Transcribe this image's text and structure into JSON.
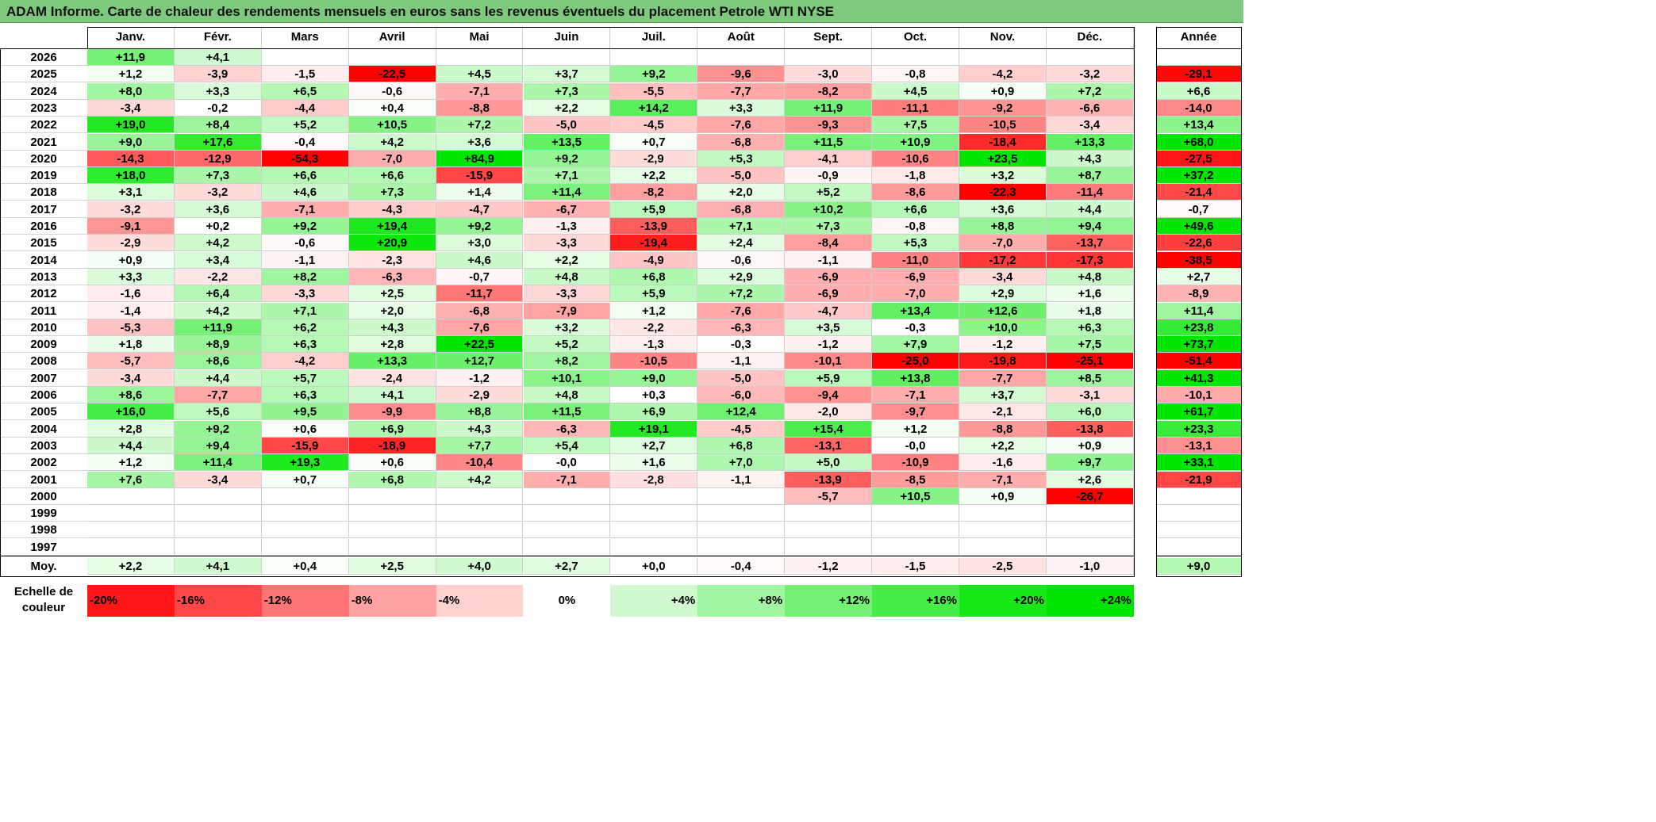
{
  "title": "ADAM Informe. Carte de chaleur des rendements mensuels en euros sans les revenus éventuels du placement Petrole WTI NYSE",
  "months": [
    "Janv.",
    "Févr.",
    "Mars",
    "Avril",
    "Mai",
    "Juin",
    "Juil.",
    "Août",
    "Sept.",
    "Oct.",
    "Nov.",
    "Déc."
  ],
  "annual_header": "Année",
  "avg_label": "Moy.",
  "scale_label_line1": "Echelle de",
  "scale_label_line2": "couleur",
  "colors": {
    "negative": "#ff0000",
    "positive": "#00e600",
    "neutral": "#ffffff",
    "title_bg": "#7fc97f"
  },
  "chart_data": {
    "type": "heatmap",
    "title": "ADAM Informe. Carte de chaleur des rendements mensuels en euros sans les revenus éventuels du placement Petrole WTI NYSE",
    "columns": [
      "Janv.",
      "Févr.",
      "Mars",
      "Avril",
      "Mai",
      "Juin",
      "Juil.",
      "Août",
      "Sept.",
      "Oct.",
      "Nov.",
      "Déc.",
      "Année"
    ],
    "rows": [
      {
        "year": "2026",
        "months": [
          "+11,9",
          "+4,1",
          "",
          "",
          "",
          "",
          "",
          "",
          "",
          "",
          "",
          ""
        ],
        "annual": ""
      },
      {
        "year": "2025",
        "months": [
          "+1,2",
          "-3,9",
          "-1,5",
          "-22,5",
          "+4,5",
          "+3,7",
          "+9,2",
          "-9,6",
          "-3,0",
          "-0,8",
          "-4,2",
          "-3,2"
        ],
        "annual": "-29,1"
      },
      {
        "year": "2024",
        "months": [
          "+8,0",
          "+3,3",
          "+6,5",
          "-0,6",
          "-7,1",
          "+7,3",
          "-5,5",
          "-7,7",
          "-8,2",
          "+4,5",
          "+0,9",
          "+7,2"
        ],
        "annual": "+6,6"
      },
      {
        "year": "2023",
        "months": [
          "-3,4",
          "-0,2",
          "-4,4",
          "+0,4",
          "-8,8",
          "+2,2",
          "+14,2",
          "+3,3",
          "+11,9",
          "-11,1",
          "-9,2",
          "-6,6"
        ],
        "annual": "-14,0"
      },
      {
        "year": "2022",
        "months": [
          "+19,0",
          "+8,4",
          "+5,2",
          "+10,5",
          "+7,2",
          "-5,0",
          "-4,5",
          "-7,6",
          "-9,3",
          "+7,5",
          "-10,5",
          "-3,4"
        ],
        "annual": "+13,4"
      },
      {
        "year": "2021",
        "months": [
          "+9,0",
          "+17,6",
          "-0,4",
          "+4,2",
          "+3,6",
          "+13,5",
          "+0,7",
          "-6,8",
          "+11,5",
          "+10,9",
          "-18,4",
          "+13,3"
        ],
        "annual": "+68,0"
      },
      {
        "year": "2020",
        "months": [
          "-14,3",
          "-12,9",
          "-54,3",
          "-7,0",
          "+84,9",
          "+9,2",
          "-2,9",
          "+5,3",
          "-4,1",
          "-10,6",
          "+23,5",
          "+4,3"
        ],
        "annual": "-27,5"
      },
      {
        "year": "2019",
        "months": [
          "+18,0",
          "+7,3",
          "+6,6",
          "+6,6",
          "-15,9",
          "+7,1",
          "+2,2",
          "-5,0",
          "-0,9",
          "-1,8",
          "+3,2",
          "+8,7"
        ],
        "annual": "+37,2"
      },
      {
        "year": "2018",
        "months": [
          "+3,1",
          "-3,2",
          "+4,6",
          "+7,3",
          "+1,4",
          "+11,4",
          "-8,2",
          "+2,0",
          "+5,2",
          "-8,6",
          "-22,3",
          "-11,4"
        ],
        "annual": "-21,4"
      },
      {
        "year": "2017",
        "months": [
          "-3,2",
          "+3,6",
          "-7,1",
          "-4,3",
          "-4,7",
          "-6,7",
          "+5,9",
          "-6,8",
          "+10,2",
          "+6,6",
          "+3,6",
          "+4,4"
        ],
        "annual": "-0,7"
      },
      {
        "year": "2016",
        "months": [
          "-9,1",
          "+0,2",
          "+9,2",
          "+19,4",
          "+9,2",
          "-1,3",
          "-13,9",
          "+7,1",
          "+7,3",
          "-0,8",
          "+8,8",
          "+9,4"
        ],
        "annual": "+49,6"
      },
      {
        "year": "2015",
        "months": [
          "-2,9",
          "+4,2",
          "-0,6",
          "+20,9",
          "+3,0",
          "-3,3",
          "-19,4",
          "+2,4",
          "-8,4",
          "+5,3",
          "-7,0",
          "-13,7"
        ],
        "annual": "-22,6"
      },
      {
        "year": "2014",
        "months": [
          "+0,9",
          "+3,4",
          "-1,1",
          "-2,3",
          "+4,6",
          "+2,2",
          "-4,9",
          "-0,6",
          "-1,1",
          "-11,0",
          "-17,2",
          "-17,3"
        ],
        "annual": "-38,5"
      },
      {
        "year": "2013",
        "months": [
          "+3,3",
          "-2,2",
          "+8,2",
          "-6,3",
          "-0,7",
          "+4,8",
          "+6,8",
          "+2,9",
          "-6,9",
          "-6,9",
          "-3,4",
          "+4,8"
        ],
        "annual": "+2,7"
      },
      {
        "year": "2012",
        "months": [
          "-1,6",
          "+6,4",
          "-3,3",
          "+2,5",
          "-11,7",
          "-3,3",
          "+5,9",
          "+7,2",
          "-6,9",
          "-7,0",
          "+2,9",
          "+1,6"
        ],
        "annual": "-8,9"
      },
      {
        "year": "2011",
        "months": [
          "-1,4",
          "+4,2",
          "+7,1",
          "+2,0",
          "-6,8",
          "-7,9",
          "+1,2",
          "-7,6",
          "-4,7",
          "+13,4",
          "+12,6",
          "+1,8"
        ],
        "annual": "+11,4"
      },
      {
        "year": "2010",
        "months": [
          "-5,3",
          "+11,9",
          "+6,2",
          "+4,3",
          "-7,6",
          "+3,2",
          "-2,2",
          "-6,3",
          "+3,5",
          "-0,3",
          "+10,0",
          "+6,3"
        ],
        "annual": "+23,8"
      },
      {
        "year": "2009",
        "months": [
          "+1,8",
          "+8,9",
          "+6,3",
          "+2,8",
          "+22,5",
          "+5,2",
          "-1,3",
          "-0,3",
          "-1,2",
          "+7,9",
          "-1,2",
          "+7,5"
        ],
        "annual": "+73,7"
      },
      {
        "year": "2008",
        "months": [
          "-5,7",
          "+8,6",
          "-4,2",
          "+13,3",
          "+12,7",
          "+8,2",
          "-10,5",
          "-1,1",
          "-10,1",
          "-25,0",
          "-19,8",
          "-25,1"
        ],
        "annual": "-51,4"
      },
      {
        "year": "2007",
        "months": [
          "-3,4",
          "+4,4",
          "+5,7",
          "-2,4",
          "-1,2",
          "+10,1",
          "+9,0",
          "-5,0",
          "+5,9",
          "+13,8",
          "-7,7",
          "+8,5"
        ],
        "annual": "+41,3"
      },
      {
        "year": "2006",
        "months": [
          "+8,6",
          "-7,7",
          "+6,3",
          "+4,1",
          "-2,9",
          "+4,8",
          "+0,3",
          "-6,0",
          "-9,4",
          "-7,1",
          "+3,7",
          "-3,1"
        ],
        "annual": "-10,1"
      },
      {
        "year": "2005",
        "months": [
          "+16,0",
          "+5,6",
          "+9,5",
          "-9,9",
          "+8,8",
          "+11,5",
          "+6,9",
          "+12,4",
          "-2,0",
          "-9,7",
          "-2,1",
          "+6,0"
        ],
        "annual": "+61,7"
      },
      {
        "year": "2004",
        "months": [
          "+2,8",
          "+9,2",
          "+0,6",
          "+6,9",
          "+4,3",
          "-6,3",
          "+19,1",
          "-4,5",
          "+15,4",
          "+1,2",
          "-8,8",
          "-13,8"
        ],
        "annual": "+23,3"
      },
      {
        "year": "2003",
        "months": [
          "+4,4",
          "+9,4",
          "-15,9",
          "-18,9",
          "+7,7",
          "+5,4",
          "+2,7",
          "+6,8",
          "-13,1",
          "-0,0",
          "+2,2",
          "+0,9"
        ],
        "annual": "-13,1"
      },
      {
        "year": "2002",
        "months": [
          "+1,2",
          "+11,4",
          "+19,3",
          "+0,6",
          "-10,4",
          "-0,0",
          "+1,6",
          "+7,0",
          "+5,0",
          "-10,9",
          "-1,6",
          "+9,7"
        ],
        "annual": "+33,1"
      },
      {
        "year": "2001",
        "months": [
          "+7,6",
          "-3,4",
          "+0,7",
          "+6,8",
          "+4,2",
          "-7,1",
          "-2,8",
          "-1,1",
          "-13,9",
          "-8,5",
          "-7,1",
          "+2,6"
        ],
        "annual": "-21,9"
      },
      {
        "year": "2000",
        "months": [
          "",
          "",
          "",
          "",
          "",
          "",
          "",
          "",
          "-5,7",
          "+10,5",
          "+0,9",
          "-26,7"
        ],
        "annual": ""
      },
      {
        "year": "1999",
        "months": [
          "",
          "",
          "",
          "",
          "",
          "",
          "",
          "",
          "",
          "",
          "",
          ""
        ],
        "annual": ""
      },
      {
        "year": "1998",
        "months": [
          "",
          "",
          "",
          "",
          "",
          "",
          "",
          "",
          "",
          "",
          "",
          ""
        ],
        "annual": ""
      },
      {
        "year": "1997",
        "months": [
          "",
          "",
          "",
          "",
          "",
          "",
          "",
          "",
          "",
          "",
          "",
          ""
        ],
        "annual": ""
      }
    ],
    "average": {
      "months": [
        "+2,2",
        "+4,1",
        "+0,4",
        "+2,5",
        "+4,0",
        "+2,7",
        "+0,0",
        "-0,4",
        "-1,2",
        "-1,5",
        "-2,5",
        "-1,0"
      ],
      "annual": "+9,0"
    },
    "color_scale": [
      "-20%",
      "-16%",
      "-12%",
      "-8%",
      "-4%",
      "0%",
      "+4%",
      "+8%",
      "+12%",
      "+16%",
      "+20%",
      "+24%"
    ]
  }
}
